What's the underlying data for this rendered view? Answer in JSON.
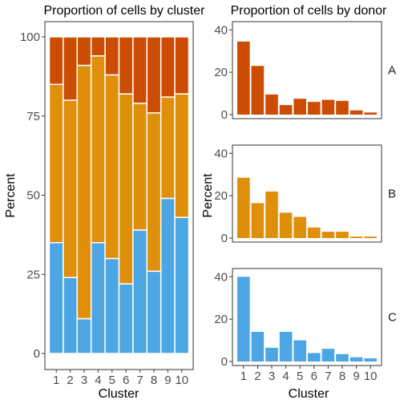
{
  "colors": {
    "A": "#CC4C02",
    "B": "#E08F0B",
    "C": "#4BA6E3",
    "bar_outline": "#ffffff"
  },
  "chart_data": [
    {
      "type": "bar",
      "stacked": true,
      "title": "Proportion of cells by cluster",
      "xlabel": "Cluster",
      "ylabel": "Percent",
      "categories": [
        "1",
        "2",
        "3",
        "4",
        "5",
        "6",
        "7",
        "8",
        "9",
        "10"
      ],
      "ylim": [
        0,
        100
      ],
      "yticks": [
        0,
        25,
        50,
        75,
        100
      ],
      "series": [
        {
          "key": "C",
          "values": [
            35,
            24,
            11,
            35,
            30,
            22,
            39,
            26,
            49,
            43
          ]
        },
        {
          "key": "B",
          "values": [
            50,
            56,
            80,
            59,
            58,
            60,
            40,
            50,
            32,
            39
          ]
        },
        {
          "key": "A",
          "values": [
            15,
            20,
            9,
            6,
            12,
            18,
            21,
            24,
            19,
            18
          ]
        }
      ]
    },
    {
      "type": "bar",
      "facetted": true,
      "title": "Proportion of cells by donor",
      "xlabel": "Cluster",
      "ylabel": "Percent",
      "categories": [
        "1",
        "2",
        "3",
        "4",
        "5",
        "6",
        "7",
        "8",
        "9",
        "10"
      ],
      "ylim": [
        0,
        42
      ],
      "yticks": [
        0,
        20,
        40
      ],
      "panels": [
        {
          "label": "A",
          "values": [
            34.5,
            23,
            9.5,
            4.5,
            7.5,
            6,
            7,
            6.5,
            2,
            1
          ]
        },
        {
          "label": "B",
          "values": [
            28.5,
            16.5,
            22,
            12,
            10,
            5,
            3,
            3,
            0.7,
            0.7
          ]
        },
        {
          "label": "C",
          "values": [
            40,
            14,
            6.5,
            14,
            10,
            4,
            6,
            3.5,
            2,
            1.5
          ]
        }
      ]
    }
  ]
}
